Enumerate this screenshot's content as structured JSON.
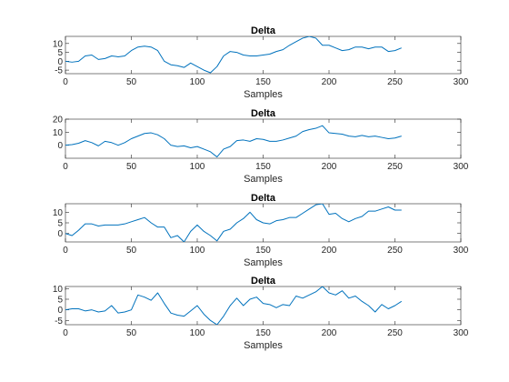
{
  "chart_data": [
    {
      "type": "line",
      "title": "Delta",
      "xlabel": "Samples",
      "xlim": [
        0,
        300
      ],
      "ylim": [
        -7,
        14
      ],
      "xticks": [
        0,
        50,
        100,
        150,
        200,
        250,
        300
      ],
      "yticks": [
        -5,
        0,
        5,
        10
      ],
      "series": [
        {
          "color": "#0072BD",
          "x": [
            0,
            5,
            10,
            15,
            20,
            25,
            30,
            35,
            40,
            45,
            50,
            55,
            60,
            65,
            70,
            75,
            80,
            85,
            90,
            95,
            100,
            105,
            110,
            115,
            120,
            125,
            130,
            135,
            140,
            145,
            150,
            155,
            160,
            165,
            170,
            175,
            180,
            185,
            190,
            195,
            200,
            205,
            210,
            215,
            220,
            225,
            230,
            235,
            240,
            245,
            250,
            255
          ],
          "y": [
            0,
            -0.5,
            0,
            3,
            3.5,
            1,
            1.5,
            3,
            2.5,
            3,
            6,
            8,
            8.5,
            8,
            6,
            0,
            -2,
            -2.5,
            -3.5,
            -1,
            -3,
            -5,
            -6.5,
            -3,
            3,
            5.5,
            5,
            3.5,
            3,
            3,
            3.5,
            4,
            5.5,
            6.5,
            9,
            11,
            13,
            14,
            13,
            9,
            9,
            7.5,
            6,
            6.5,
            8,
            8,
            7,
            8,
            8,
            5.5,
            6,
            7.5
          ]
        }
      ]
    },
    {
      "type": "line",
      "title": "Delta",
      "xlabel": "Samples",
      "xlim": [
        0,
        300
      ],
      "ylim": [
        -10,
        20
      ],
      "xticks": [
        0,
        50,
        100,
        150,
        200,
        250,
        300
      ],
      "yticks": [
        0,
        10,
        20
      ],
      "series": [
        {
          "color": "#0072BD",
          "x": [
            0,
            5,
            10,
            15,
            20,
            25,
            30,
            35,
            40,
            45,
            50,
            55,
            60,
            65,
            70,
            75,
            80,
            85,
            90,
            95,
            100,
            105,
            110,
            115,
            120,
            125,
            130,
            135,
            140,
            145,
            150,
            155,
            160,
            165,
            170,
            175,
            180,
            185,
            190,
            195,
            200,
            205,
            210,
            215,
            220,
            225,
            230,
            235,
            240,
            245,
            250,
            255
          ],
          "y": [
            0,
            0.5,
            1.5,
            3.5,
            2,
            -0.5,
            3,
            2,
            0,
            2,
            5,
            7,
            9,
            9.5,
            8,
            5,
            0,
            -1,
            -0.5,
            -2,
            -1,
            -3,
            -5,
            -9,
            -3,
            -1,
            3.5,
            4,
            3,
            5,
            4.5,
            3,
            3,
            4,
            5.5,
            7,
            10.5,
            12,
            13,
            15,
            9.5,
            9,
            8.5,
            7,
            6.5,
            7.5,
            6.5,
            7,
            6,
            5,
            5.5,
            7
          ]
        }
      ]
    },
    {
      "type": "line",
      "title": "Delta",
      "xlabel": "Samples",
      "xlim": [
        0,
        300
      ],
      "ylim": [
        -4,
        14
      ],
      "xticks": [
        0,
        50,
        100,
        150,
        200,
        250,
        300
      ],
      "yticks": [
        0,
        5,
        10
      ],
      "series": [
        {
          "color": "#0072BD",
          "x": [
            0,
            5,
            10,
            15,
            20,
            25,
            30,
            35,
            40,
            45,
            50,
            55,
            60,
            65,
            70,
            75,
            80,
            85,
            90,
            95,
            100,
            105,
            110,
            115,
            120,
            125,
            130,
            135,
            140,
            145,
            150,
            155,
            160,
            165,
            170,
            175,
            180,
            185,
            190,
            195,
            200,
            205,
            210,
            215,
            220,
            225,
            230,
            235,
            240,
            245,
            250,
            255
          ],
          "y": [
            0,
            -1,
            1.5,
            4.5,
            4.5,
            3.5,
            4,
            4,
            4,
            4.5,
            5.5,
            6.5,
            7.5,
            5,
            3,
            3,
            -2,
            -1,
            -4,
            1,
            4,
            1,
            -1,
            -3.5,
            1,
            2,
            5,
            7,
            10,
            6.5,
            5,
            4.5,
            6,
            6.5,
            7.5,
            7.5,
            9.5,
            11.5,
            13.5,
            14,
            9,
            9.5,
            7,
            5.5,
            7,
            8,
            10.5,
            10.5,
            11.5,
            12.5,
            11,
            11
          ]
        }
      ]
    },
    {
      "type": "line",
      "title": "Delta",
      "xlabel": "Samples",
      "xlim": [
        0,
        300
      ],
      "ylim": [
        -7,
        11
      ],
      "xticks": [
        0,
        50,
        100,
        150,
        200,
        250,
        300
      ],
      "yticks": [
        -5,
        0,
        5,
        10
      ],
      "series": [
        {
          "color": "#0072BD",
          "x": [
            0,
            5,
            10,
            15,
            20,
            25,
            30,
            35,
            40,
            45,
            50,
            55,
            60,
            65,
            70,
            75,
            80,
            85,
            90,
            95,
            100,
            105,
            110,
            115,
            120,
            125,
            130,
            135,
            140,
            145,
            150,
            155,
            160,
            165,
            170,
            175,
            180,
            185,
            190,
            195,
            200,
            205,
            210,
            215,
            220,
            225,
            230,
            235,
            240,
            245,
            250,
            255
          ],
          "y": [
            0,
            0.5,
            0.5,
            -0.5,
            0,
            -1,
            -0.5,
            2,
            -1.5,
            -1,
            0,
            7,
            6,
            4.5,
            8,
            3,
            -1.5,
            -2.5,
            -3,
            -0.5,
            2,
            -2,
            -5,
            -7,
            -3,
            2,
            5.5,
            2,
            5,
            6,
            3,
            2.5,
            1,
            2.5,
            2,
            6.5,
            5.5,
            7,
            8.5,
            11,
            8,
            7,
            9,
            5.5,
            6.5,
            4,
            2,
            -1,
            2.5,
            0.5,
            2,
            4
          ]
        }
      ]
    }
  ]
}
